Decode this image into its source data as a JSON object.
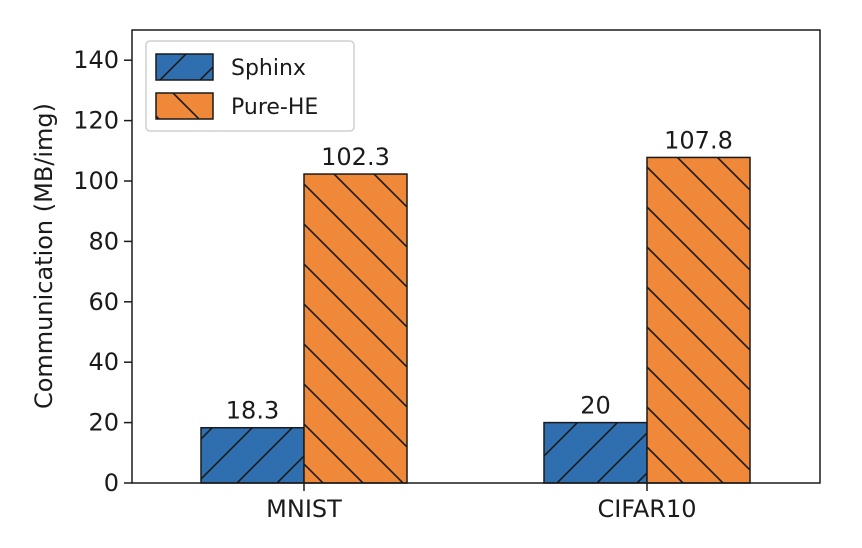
{
  "chart_data": {
    "type": "bar",
    "categories": [
      "MNIST",
      "CIFAR10"
    ],
    "series": [
      {
        "name": "Sphinx",
        "values": [
          18.3,
          20
        ],
        "labels": [
          "18.3",
          "20"
        ],
        "color": "#2f6fb0",
        "hatch": "forward-diagonal"
      },
      {
        "name": "Pure-HE",
        "values": [
          102.3,
          107.8
        ],
        "labels": [
          "102.3",
          "107.8"
        ],
        "color": "#f0883a",
        "hatch": "backward-diagonal"
      }
    ],
    "title": "",
    "xlabel": "",
    "ylabel": "Communication (MB/img)",
    "ylim": [
      0,
      150
    ],
    "yticks": [
      0,
      20,
      40,
      60,
      80,
      100,
      120,
      140
    ],
    "grid": false,
    "legend_position": "top-left"
  }
}
